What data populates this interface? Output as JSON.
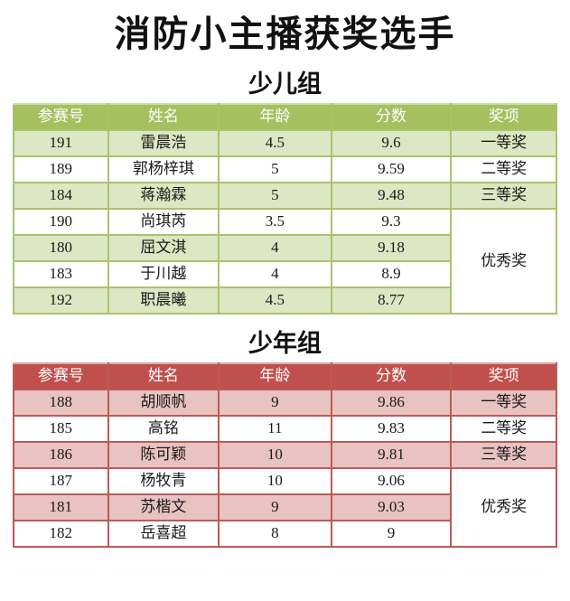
{
  "page": {
    "title": "消防小主播获奖选手",
    "background": "#ffffff"
  },
  "columns": [
    "参赛号",
    "姓名",
    "年龄",
    "分数",
    "奖项"
  ],
  "column_widths_pct": [
    17.4,
    20.4,
    20.7,
    22.1,
    19.4
  ],
  "groups": [
    {
      "title": "少儿组",
      "theme": {
        "header_bg": "#a4c05f",
        "header_text": "#ffffff",
        "row_shaded_bg": "#dde7c3",
        "row_plain_bg": "#ffffff",
        "border": "#a9c36c",
        "border_top": "#cfdfa8"
      },
      "rows": [
        {
          "no": "191",
          "name": "雷晨浩",
          "age": "4.5",
          "score": "9.6",
          "award": "一等奖",
          "award_span": 1
        },
        {
          "no": "189",
          "name": "郭杨梓琪",
          "age": "5",
          "score": "9.59",
          "award": "二等奖",
          "award_span": 1
        },
        {
          "no": "184",
          "name": "蒋瀚霖",
          "age": "5",
          "score": "9.48",
          "award": "三等奖",
          "award_span": 1
        },
        {
          "no": "190",
          "name": "尚琪芮",
          "age": "3.5",
          "score": "9.3",
          "award": "优秀奖",
          "award_span": 4
        },
        {
          "no": "180",
          "name": "屈文淇",
          "age": "4",
          "score": "9.18",
          "award": null
        },
        {
          "no": "183",
          "name": "于川越",
          "age": "4",
          "score": "8.9",
          "award": null
        },
        {
          "no": "192",
          "name": "职晨曦",
          "age": "4.5",
          "score": "8.77",
          "award": null
        }
      ]
    },
    {
      "title": "少年组",
      "theme": {
        "header_bg": "#c0504d",
        "header_text": "#ffffff",
        "row_shaded_bg": "#e8c3c1",
        "row_plain_bg": "#ffffff",
        "border": "#bb5a57",
        "border_top": "#dfa9a7"
      },
      "rows": [
        {
          "no": "188",
          "name": "胡顺帆",
          "age": "9",
          "score": "9.86",
          "award": "一等奖",
          "award_span": 1
        },
        {
          "no": "185",
          "name": "高铭",
          "age": "11",
          "score": "9.83",
          "award": "二等奖",
          "award_span": 1
        },
        {
          "no": "186",
          "name": "陈可颖",
          "age": "10",
          "score": "9.81",
          "award": "三等奖",
          "award_span": 1
        },
        {
          "no": "187",
          "name": "杨牧青",
          "age": "10",
          "score": "9.06",
          "award": "优秀奖",
          "award_span": 3
        },
        {
          "no": "181",
          "name": "苏楷文",
          "age": "9",
          "score": "9.03",
          "award": null
        },
        {
          "no": "182",
          "name": "岳喜超",
          "age": "8",
          "score": "9",
          "award": null
        }
      ]
    }
  ]
}
